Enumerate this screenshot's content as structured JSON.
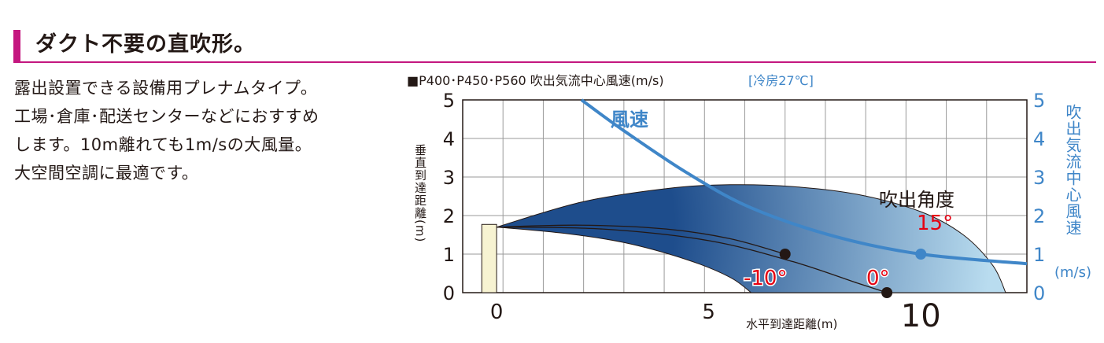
{
  "section": {
    "title": "ダクト不要の直吹形。",
    "accent_color": "#c4177f"
  },
  "description": {
    "lines": [
      "露出設置できる設備用プレナムタイプ。",
      "工場･倉庫･配送センターなどにおすすめ",
      "します。10m離れても1m/sの大風量。",
      "大空間空調に最適です。"
    ]
  },
  "chart_data": {
    "type": "area",
    "title": "■P400･P450･P560 吹出気流中心風速(m/s)",
    "title_note": "[冷房27℃]",
    "xlabel": "水平到達距離(m)",
    "ylabel": "垂直到達距離(m)",
    "y2label": "吹出気流中心風速",
    "y2unit": "(m/s)",
    "xlim": [
      -0.8,
      12.5
    ],
    "ylim": [
      0,
      5
    ],
    "y2lim": [
      0,
      5
    ],
    "x_ticks": [
      "0",
      "5",
      "10"
    ],
    "y_ticks": [
      "0",
      "1",
      "2",
      "3",
      "4",
      "5"
    ],
    "y2_ticks": [
      "0",
      "1",
      "2",
      "3",
      "4",
      "5"
    ],
    "grid": true,
    "colors": {
      "speed": "#3f86c8",
      "plume": "#1e4d8c",
      "plume_light": "#b9dcef",
      "unit": "#f7f3d2",
      "angle_text": "#e60012"
    },
    "plume": {
      "origin": [
        0,
        1.7
      ],
      "upper": [
        [
          0,
          1.7
        ],
        [
          2,
          2.35
        ],
        [
          4,
          2.7
        ],
        [
          5.5,
          2.8
        ],
        [
          7,
          2.75
        ],
        [
          8.5,
          2.55
        ],
        [
          10,
          2.1
        ],
        [
          11,
          1.5
        ],
        [
          11.7,
          0.7
        ],
        [
          12,
          0
        ]
      ],
      "lower": [
        [
          0,
          1.7
        ],
        [
          1.5,
          1.55
        ],
        [
          3,
          1.3
        ],
        [
          4.5,
          0.85
        ],
        [
          5.5,
          0.4
        ],
        [
          6,
          0
        ]
      ]
    },
    "series": [
      {
        "name": "0°",
        "points": [
          [
            0,
            1.7
          ],
          [
            2.5,
            1.65
          ],
          [
            5,
            1.35
          ],
          [
            7,
            0.8
          ],
          [
            8.5,
            0.25
          ],
          [
            9.2,
            0
          ]
        ]
      },
      {
        "name": "-10°",
        "points": [
          [
            0,
            1.7
          ],
          [
            2,
            1.75
          ],
          [
            4,
            1.65
          ],
          [
            5.5,
            1.4
          ],
          [
            6.8,
            1.0
          ]
        ]
      },
      {
        "name": "風速",
        "axis": "y2",
        "points": [
          [
            2,
            5
          ],
          [
            3,
            4.2
          ],
          [
            4.5,
            3.1
          ],
          [
            6,
            2.2
          ],
          [
            8,
            1.45
          ],
          [
            10,
            1.0
          ],
          [
            12.5,
            0.75
          ]
        ]
      }
    ],
    "markers": [
      {
        "x": 6.8,
        "y": 1.0,
        "color": "#231815"
      },
      {
        "x": 9.2,
        "y": 0.0,
        "color": "#231815"
      },
      {
        "x": 10.0,
        "y": 1.0,
        "color": "#3f86c8",
        "axis": "y2"
      }
    ],
    "annotations": {
      "speed_label": "風速",
      "angle_title": "吹出角度",
      "angle_15": "15°",
      "angle_minus10": "-10°",
      "angle_0": "0°"
    }
  }
}
